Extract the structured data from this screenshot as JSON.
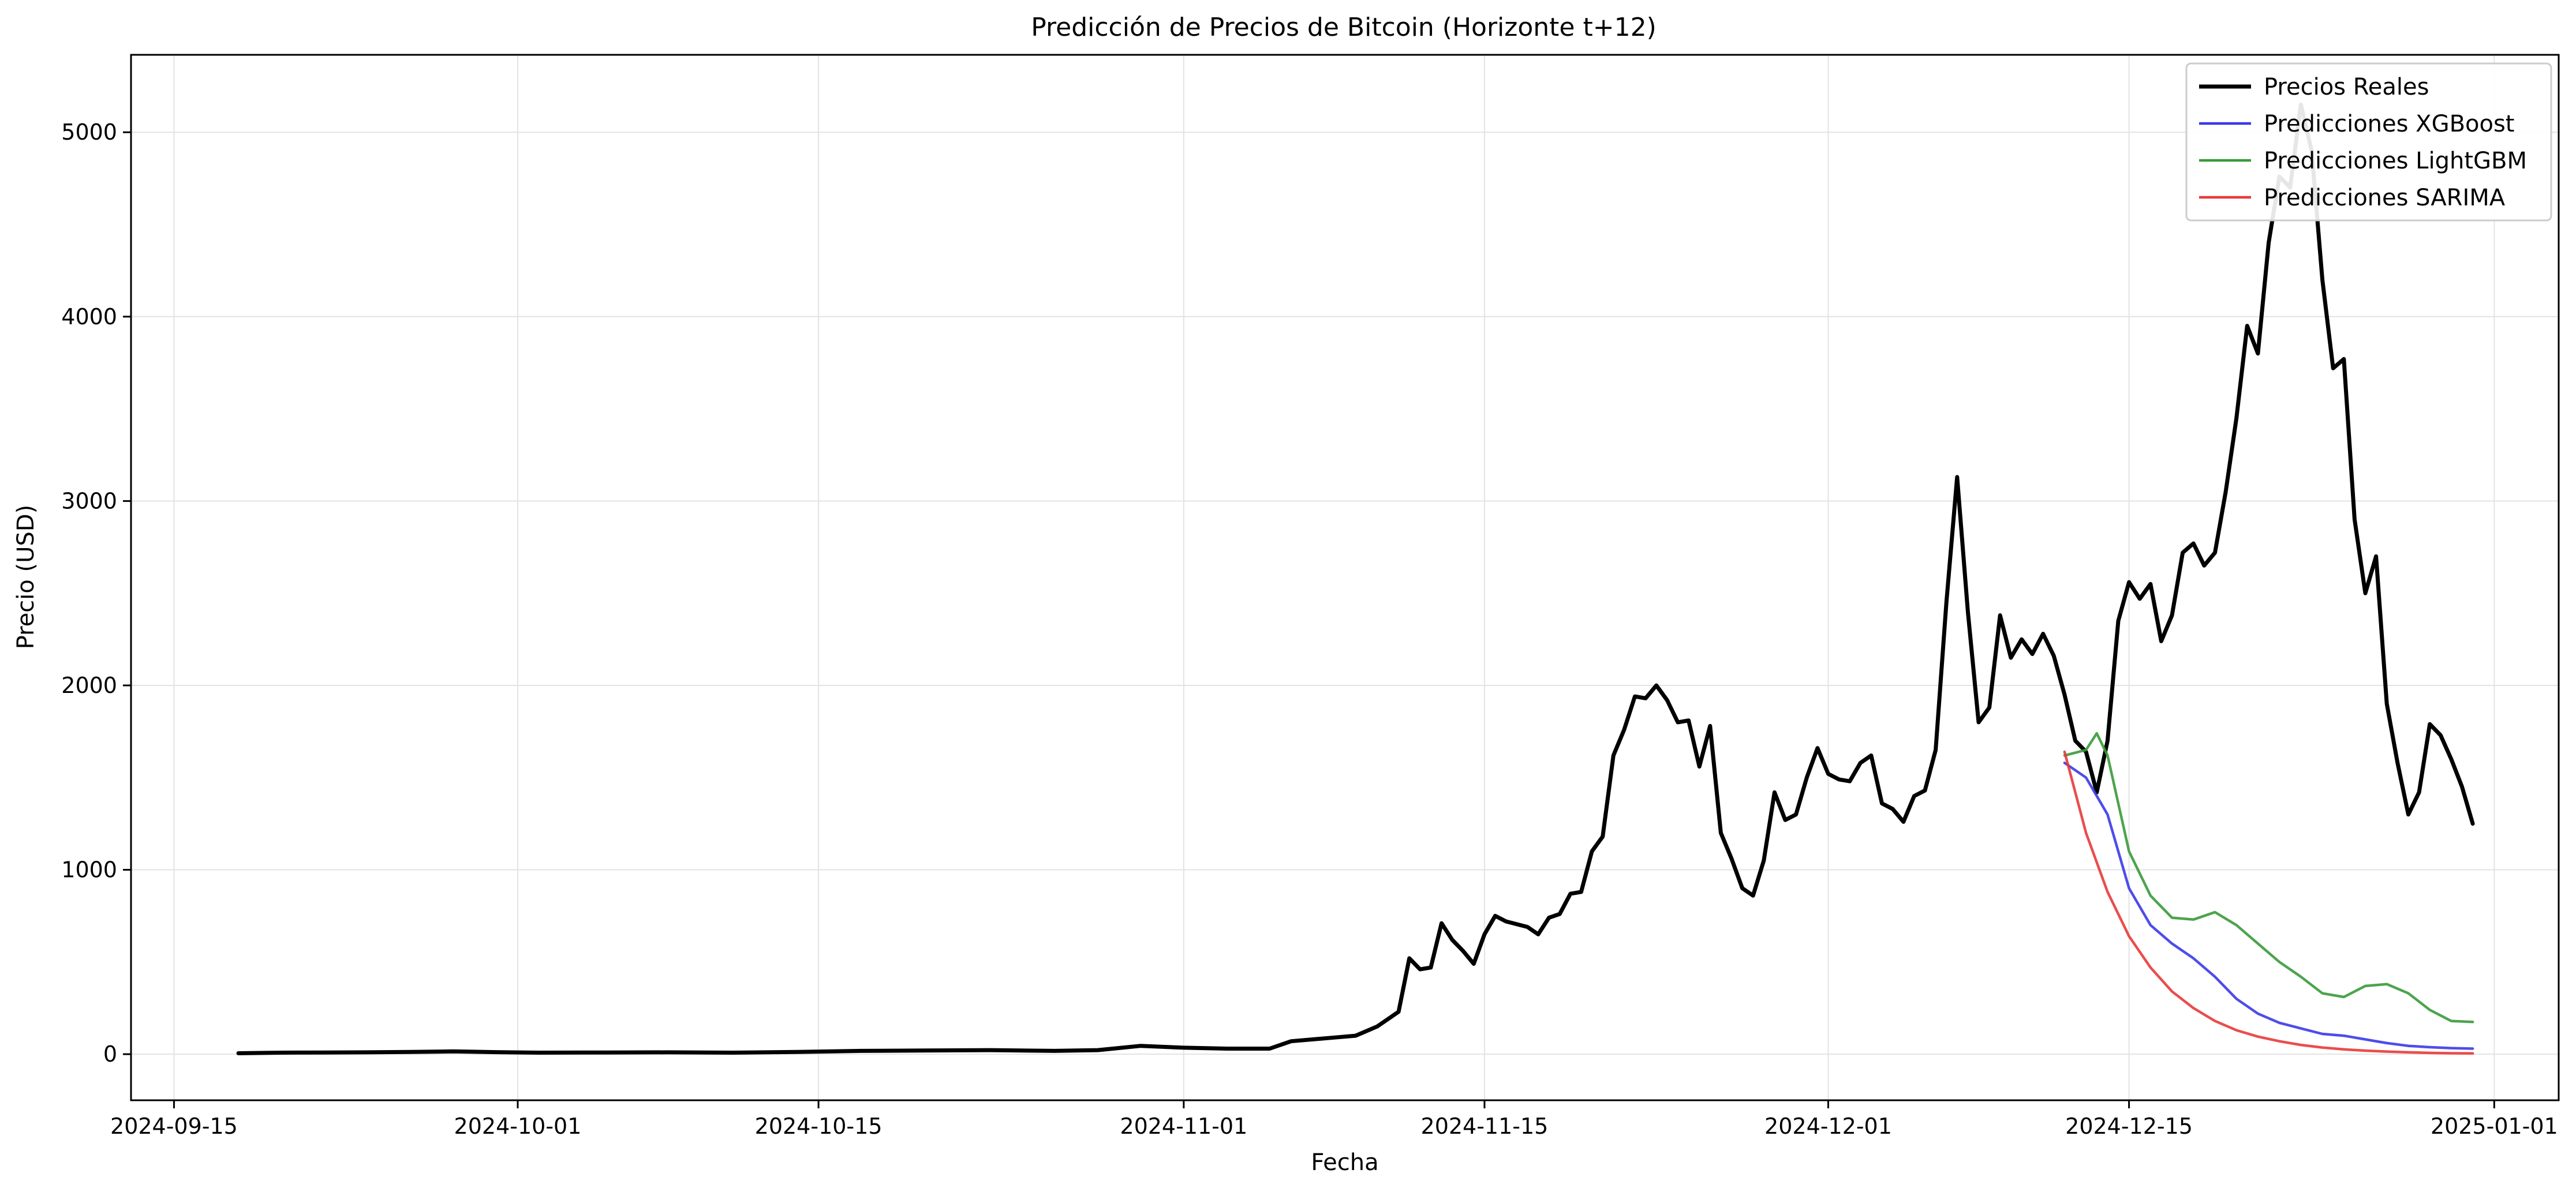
{
  "chart_data": {
    "type": "line",
    "title": "Predicción de Precios de Bitcoin (Horizonte t+12)",
    "xlabel": "Fecha",
    "ylabel": "Precio (USD)",
    "grid": true,
    "legend_position": "top-right",
    "xlim": [
      "2024-09-13",
      "2025-01-04"
    ],
    "ylim": [
      -250,
      5420
    ],
    "x_ticks": [
      "2024-09-15",
      "2024-10-01",
      "2024-10-15",
      "2024-11-01",
      "2024-11-15",
      "2024-12-01",
      "2024-12-15",
      "2025-01-01"
    ],
    "y_ticks": [
      0,
      1000,
      2000,
      3000,
      4000,
      5000
    ],
    "series": [
      {
        "name": "Precios Reales",
        "color": "#000000",
        "points": [
          [
            "2024-09-18",
            5
          ],
          [
            "2024-09-20",
            8
          ],
          [
            "2024-09-22",
            9
          ],
          [
            "2024-09-24",
            10
          ],
          [
            "2024-09-26",
            12
          ],
          [
            "2024-09-28",
            15
          ],
          [
            "2024-09-30",
            11
          ],
          [
            "2024-10-02",
            8
          ],
          [
            "2024-10-05",
            9
          ],
          [
            "2024-10-08",
            10
          ],
          [
            "2024-10-11",
            8
          ],
          [
            "2024-10-14",
            12
          ],
          [
            "2024-10-17",
            18
          ],
          [
            "2024-10-20",
            20
          ],
          [
            "2024-10-23",
            22
          ],
          [
            "2024-10-26",
            18
          ],
          [
            "2024-10-28",
            22
          ],
          [
            "2024-10-30",
            45
          ],
          [
            "2024-11-01",
            35
          ],
          [
            "2024-11-03",
            30
          ],
          [
            "2024-11-05",
            30
          ],
          [
            "2024-11-06",
            70
          ],
          [
            "2024-11-08",
            90
          ],
          [
            "2024-11-09",
            100
          ],
          [
            "2024-11-10",
            150
          ],
          [
            "2024-11-11",
            230
          ],
          [
            "2024-11-11 12:00",
            520
          ],
          [
            "2024-11-12",
            460
          ],
          [
            "2024-11-12 12:00",
            470
          ],
          [
            "2024-11-13",
            710
          ],
          [
            "2024-11-13 12:00",
            620
          ],
          [
            "2024-11-14",
            560
          ],
          [
            "2024-11-14 12:00",
            490
          ],
          [
            "2024-11-15",
            650
          ],
          [
            "2024-11-15 12:00",
            750
          ],
          [
            "2024-11-16",
            720
          ],
          [
            "2024-11-17",
            690
          ],
          [
            "2024-11-17 12:00",
            650
          ],
          [
            "2024-11-18",
            740
          ],
          [
            "2024-11-18 12:00",
            760
          ],
          [
            "2024-11-19",
            870
          ],
          [
            "2024-11-19 12:00",
            880
          ],
          [
            "2024-11-20",
            1100
          ],
          [
            "2024-11-20 12:00",
            1180
          ],
          [
            "2024-11-21",
            1620
          ],
          [
            "2024-11-21 12:00",
            1760
          ],
          [
            "2024-11-22",
            1940
          ],
          [
            "2024-11-22 12:00",
            1930
          ],
          [
            "2024-11-23",
            2000
          ],
          [
            "2024-11-23 12:00",
            1920
          ],
          [
            "2024-11-24",
            1800
          ],
          [
            "2024-11-24 12:00",
            1810
          ],
          [
            "2024-11-25",
            1560
          ],
          [
            "2024-11-25 12:00",
            1780
          ],
          [
            "2024-11-26",
            1200
          ],
          [
            "2024-11-26 12:00",
            1060
          ],
          [
            "2024-11-27",
            900
          ],
          [
            "2024-11-27 12:00",
            860
          ],
          [
            "2024-11-28",
            1050
          ],
          [
            "2024-11-28 12:00",
            1420
          ],
          [
            "2024-11-29",
            1270
          ],
          [
            "2024-11-29 12:00",
            1300
          ],
          [
            "2024-11-30",
            1500
          ],
          [
            "2024-11-30 12:00",
            1660
          ],
          [
            "2024-12-01",
            1520
          ],
          [
            "2024-12-01 12:00",
            1490
          ],
          [
            "2024-12-02",
            1480
          ],
          [
            "2024-12-02 12:00",
            1580
          ],
          [
            "2024-12-03",
            1620
          ],
          [
            "2024-12-03 12:00",
            1360
          ],
          [
            "2024-12-04",
            1330
          ],
          [
            "2024-12-04 12:00",
            1260
          ],
          [
            "2024-12-05",
            1400
          ],
          [
            "2024-12-05 12:00",
            1430
          ],
          [
            "2024-12-06",
            1650
          ],
          [
            "2024-12-06 12:00",
            2450
          ],
          [
            "2024-12-07",
            3130
          ],
          [
            "2024-12-07 12:00",
            2400
          ],
          [
            "2024-12-08",
            1800
          ],
          [
            "2024-12-08 12:00",
            1880
          ],
          [
            "2024-12-09",
            2380
          ],
          [
            "2024-12-09 12:00",
            2150
          ],
          [
            "2024-12-10",
            2250
          ],
          [
            "2024-12-10 12:00",
            2170
          ],
          [
            "2024-12-11",
            2280
          ],
          [
            "2024-12-11 12:00",
            2160
          ],
          [
            "2024-12-12",
            1950
          ],
          [
            "2024-12-12 12:00",
            1700
          ],
          [
            "2024-12-13",
            1640
          ],
          [
            "2024-12-13 12:00",
            1420
          ],
          [
            "2024-12-14",
            1700
          ],
          [
            "2024-12-14 12:00",
            2350
          ],
          [
            "2024-12-15",
            2560
          ],
          [
            "2024-12-15 12:00",
            2470
          ],
          [
            "2024-12-16",
            2550
          ],
          [
            "2024-12-16 12:00",
            2240
          ],
          [
            "2024-12-17",
            2380
          ],
          [
            "2024-12-17 12:00",
            2720
          ],
          [
            "2024-12-18",
            2770
          ],
          [
            "2024-12-18 12:00",
            2650
          ],
          [
            "2024-12-19",
            2720
          ],
          [
            "2024-12-19 12:00",
            3050
          ],
          [
            "2024-12-20",
            3450
          ],
          [
            "2024-12-20 12:00",
            3950
          ],
          [
            "2024-12-21",
            3800
          ],
          [
            "2024-12-21 12:00",
            4400
          ],
          [
            "2024-12-22",
            4760
          ],
          [
            "2024-12-22 12:00",
            4700
          ],
          [
            "2024-12-23",
            5150
          ],
          [
            "2024-12-23 12:00",
            4900
          ],
          [
            "2024-12-24",
            4200
          ],
          [
            "2024-12-24 12:00",
            3720
          ],
          [
            "2024-12-25",
            3770
          ],
          [
            "2024-12-25 12:00",
            2900
          ],
          [
            "2024-12-26",
            2500
          ],
          [
            "2024-12-26 12:00",
            2700
          ],
          [
            "2024-12-27",
            1900
          ],
          [
            "2024-12-27 12:00",
            1580
          ],
          [
            "2024-12-28",
            1300
          ],
          [
            "2024-12-28 12:00",
            1420
          ],
          [
            "2024-12-29",
            1790
          ],
          [
            "2024-12-29 12:00",
            1730
          ],
          [
            "2024-12-30",
            1600
          ],
          [
            "2024-12-30 12:00",
            1450
          ],
          [
            "2024-12-31",
            1250
          ]
        ]
      },
      {
        "name": "Predicciones XGBoost",
        "color": "#3a3ae8",
        "points": [
          [
            "2024-12-12",
            1580
          ],
          [
            "2024-12-13",
            1500
          ],
          [
            "2024-12-14",
            1300
          ],
          [
            "2024-12-15",
            900
          ],
          [
            "2024-12-16",
            700
          ],
          [
            "2024-12-17",
            600
          ],
          [
            "2024-12-18",
            520
          ],
          [
            "2024-12-19",
            420
          ],
          [
            "2024-12-20",
            300
          ],
          [
            "2024-12-21",
            220
          ],
          [
            "2024-12-22",
            170
          ],
          [
            "2024-12-23",
            140
          ],
          [
            "2024-12-24",
            110
          ],
          [
            "2024-12-25",
            100
          ],
          [
            "2024-12-26",
            80
          ],
          [
            "2024-12-27",
            60
          ],
          [
            "2024-12-28",
            45
          ],
          [
            "2024-12-29",
            38
          ],
          [
            "2024-12-30",
            33
          ],
          [
            "2024-12-31",
            30
          ]
        ]
      },
      {
        "name": "Predicciones LightGBM",
        "color": "#3a9a3a",
        "points": [
          [
            "2024-12-12",
            1620
          ],
          [
            "2024-12-13",
            1650
          ],
          [
            "2024-12-13 12:00",
            1740
          ],
          [
            "2024-12-14",
            1620
          ],
          [
            "2024-12-15",
            1100
          ],
          [
            "2024-12-16",
            860
          ],
          [
            "2024-12-17",
            740
          ],
          [
            "2024-12-18",
            730
          ],
          [
            "2024-12-19",
            770
          ],
          [
            "2024-12-20",
            700
          ],
          [
            "2024-12-21",
            600
          ],
          [
            "2024-12-22",
            500
          ],
          [
            "2024-12-23",
            420
          ],
          [
            "2024-12-24",
            330
          ],
          [
            "2024-12-25",
            310
          ],
          [
            "2024-12-26",
            370
          ],
          [
            "2024-12-27",
            380
          ],
          [
            "2024-12-28",
            330
          ],
          [
            "2024-12-29",
            240
          ],
          [
            "2024-12-30",
            180
          ],
          [
            "2024-12-31",
            175
          ]
        ]
      },
      {
        "name": "Predicciones SARIMA",
        "color": "#e83a3a",
        "points": [
          [
            "2024-12-12",
            1640
          ],
          [
            "2024-12-13",
            1200
          ],
          [
            "2024-12-14",
            880
          ],
          [
            "2024-12-15",
            640
          ],
          [
            "2024-12-16",
            470
          ],
          [
            "2024-12-17",
            340
          ],
          [
            "2024-12-18",
            250
          ],
          [
            "2024-12-19",
            180
          ],
          [
            "2024-12-20",
            130
          ],
          [
            "2024-12-21",
            95
          ],
          [
            "2024-12-22",
            70
          ],
          [
            "2024-12-23",
            50
          ],
          [
            "2024-12-24",
            36
          ],
          [
            "2024-12-25",
            26
          ],
          [
            "2024-12-26",
            19
          ],
          [
            "2024-12-27",
            14
          ],
          [
            "2024-12-28",
            10
          ],
          [
            "2024-12-29",
            7
          ],
          [
            "2024-12-30",
            5
          ],
          [
            "2024-12-31",
            4
          ]
        ]
      }
    ]
  }
}
